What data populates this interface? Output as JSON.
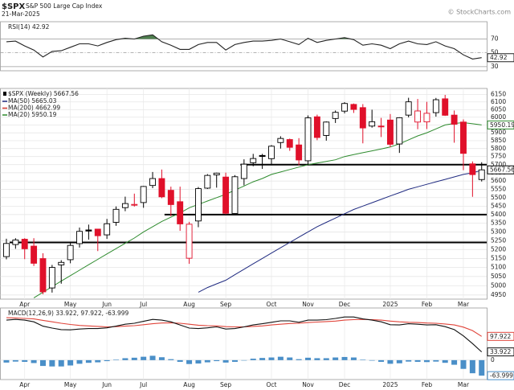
{
  "header": {
    "symbol": "$SPX",
    "name": "S&P 500 Large Cap Index",
    "date": "21-Mar-2025",
    "credit": "© StockCharts.com"
  },
  "chart_data": [
    {
      "type": "line",
      "legend": "RSI(14) 42.92",
      "ylim": [
        24,
        95
      ],
      "yticks": [
        30,
        50,
        70
      ],
      "xlim": [
        -0.7,
        52.55
      ],
      "threshold": 70,
      "threshold_color": "#4f7f4f",
      "series": [
        {
          "name": "RSI(14)",
          "color": "#222222",
          "last_label": "42.92",
          "values": [
            66,
            67,
            60,
            54,
            44,
            52,
            53,
            58,
            63,
            63,
            60,
            65,
            69,
            71,
            70,
            74,
            76,
            66,
            61,
            55,
            55,
            62,
            65,
            65,
            54,
            62,
            65,
            67,
            67,
            68,
            70,
            66,
            62,
            71,
            65,
            68,
            70,
            72,
            69,
            61,
            63,
            61,
            56,
            63,
            67,
            63,
            62,
            66,
            60,
            56,
            47,
            41,
            42.92
          ]
        }
      ]
    },
    {
      "type": "candlestick",
      "name": "$SPX (Weekly)",
      "legend": "$SPX (Weekly) 5667.56",
      "last_label": "5667.56",
      "log_scale": true,
      "ylim": [
        4928,
        6190
      ],
      "yticks": [
        4950,
        5000,
        5050,
        5100,
        5150,
        5200,
        5250,
        5300,
        5350,
        5400,
        5450,
        5500,
        5550,
        5600,
        5650,
        5700,
        5750,
        5800,
        5850,
        5900,
        5950,
        6000,
        6050,
        6100,
        6150
      ],
      "xlim": [
        -0.7,
        52.55
      ],
      "xticks": [
        {
          "value": 2,
          "label": "Apr"
        },
        {
          "value": 7,
          "label": "May"
        },
        {
          "value": 11,
          "label": "Jun"
        },
        {
          "value": 15,
          "label": "Jul"
        },
        {
          "value": 20,
          "label": "Aug"
        },
        {
          "value": 24,
          "label": "Sep"
        },
        {
          "value": 29,
          "label": "Oct"
        },
        {
          "value": 33,
          "label": "Nov"
        },
        {
          "value": 37,
          "label": "Dec"
        },
        {
          "value": 42,
          "label": "2025"
        },
        {
          "value": 46,
          "label": "Feb"
        },
        {
          "value": 50,
          "label": "Mar"
        }
      ],
      "grid": true,
      "up_color": "#000000",
      "down_color": "#e0102a",
      "open": [
        5160,
        5228,
        5258,
        5219,
        5149,
        4988,
        5114,
        5143,
        5233,
        5311,
        5316,
        5283,
        5355,
        5441,
        5460,
        5471,
        5573,
        5615,
        5544,
        5476,
        5151,
        5363,
        5557,
        5637,
        5624,
        5407,
        5615,
        5712,
        5757,
        5737,
        5838,
        5857,
        5823,
        5724,
        6003,
        5883,
        5992,
        6040,
        6084,
        6063,
        5943,
        5943,
        5982,
        5829,
        6014,
        5969,
        5970,
        6030,
        6121,
        6014,
        5969,
        5705,
        5609
      ],
      "high": [
        5261,
        5264,
        5264,
        5264,
        5179,
        5114,
        5140,
        5240,
        5325,
        5342,
        5315,
        5375,
        5448,
        5506,
        5524,
        5570,
        5655,
        5670,
        5566,
        5566,
        5358,
        5564,
        5642,
        5651,
        5651,
        5636,
        5733,
        5767,
        5767,
        5822,
        5878,
        5863,
        5866,
        6012,
        6017,
        5973,
        6044,
        6099,
        6090,
        6086,
        6049,
        5996,
        6021,
        6000,
        6128,
        6120,
        6101,
        6127,
        6147,
        6044,
        5986,
        5720,
        5715
      ],
      "low": [
        5145,
        5204,
        5146,
        5108,
        4954,
        4963,
        5011,
        5123,
        5211,
        5256,
        5191,
        5260,
        5335,
        5420,
        5447,
        5440,
        5557,
        5497,
        5391,
        5306,
        5120,
        5327,
        5552,
        5560,
        5402,
        5406,
        5574,
        5690,
        5674,
        5696,
        5800,
        5786,
        5696,
        5696,
        5853,
        5850,
        5963,
        6025,
        6028,
        5833,
        5933,
        5873,
        5809,
        5773,
        5999,
        5923,
        5924,
        6004,
        6009,
        5837,
        5666,
        5505,
        5597
      ],
      "close": [
        5234,
        5254,
        5204,
        5123,
        4967,
        5100,
        5128,
        5223,
        5303,
        5305,
        5278,
        5347,
        5431,
        5465,
        5460,
        5567,
        5615,
        5505,
        5459,
        5346,
        5344,
        5554,
        5634,
        5648,
        5408,
        5626,
        5703,
        5738,
        5751,
        5815,
        5864,
        5808,
        5729,
        5996,
        5870,
        5969,
        6032,
        6090,
        6051,
        5931,
        5971,
        5942,
        5827,
        5997,
        6101,
        6041,
        6026,
        6115,
        6013,
        5955,
        5770,
        5639,
        5668
      ],
      "series": [
        {
          "name": "MA(50)",
          "legend": "MA(50) 5665.03",
          "color": "#1f2a80",
          "last_label": "5665.03",
          "values": [
            null,
            null,
            null,
            null,
            null,
            null,
            null,
            null,
            null,
            null,
            null,
            null,
            null,
            null,
            null,
            null,
            null,
            null,
            null,
            null,
            null,
            4965,
            4990,
            5010,
            5030,
            5060,
            5090,
            5120,
            5150,
            5180,
            5210,
            5240,
            5270,
            5300,
            5330,
            5355,
            5380,
            5405,
            5430,
            5450,
            5470,
            5490,
            5510,
            5530,
            5550,
            5565,
            5580,
            5595,
            5610,
            5625,
            5640,
            5650,
            5665.03
          ]
        },
        {
          "name": "MA(200)",
          "legend": "MA(200) 4662.99",
          "color": "#d0342c",
          "last_label": "4662.99"
        },
        {
          "name": "MA(20)",
          "legend": "MA(20) 5950.19",
          "color": "#2e8b2e",
          "last_label": "5950.19",
          "box": true,
          "values": [
            null,
            null,
            null,
            4935,
            4965,
            4995,
            5025,
            5055,
            5085,
            5115,
            5145,
            5175,
            5205,
            5235,
            5265,
            5300,
            5330,
            5360,
            5385,
            5410,
            5440,
            5460,
            5480,
            5500,
            5520,
            5545,
            5570,
            5595,
            5615,
            5640,
            5655,
            5670,
            5685,
            5700,
            5710,
            5720,
            5730,
            5750,
            5762,
            5774,
            5786,
            5798,
            5810,
            5830,
            5855,
            5880,
            5900,
            5925,
            5950,
            5960,
            5965,
            5958,
            5950.19
          ]
        }
      ],
      "lines": [
        {
          "value": 5700,
          "from": 25.6
        },
        {
          "value": 5400,
          "from": 17.3
        },
        {
          "value": 5240,
          "from": 0.35
        }
      ]
    },
    {
      "type": "line",
      "legend": "MACD(12,26,9) 33.922, 97.922, -63.999",
      "ylim": [
        -80,
        215
      ],
      "yticks": [
        0
      ],
      "xlim": [
        -0.7,
        52.55
      ],
      "xticks": [
        {
          "value": 2,
          "label": "Apr"
        },
        {
          "value": 7,
          "label": "May"
        },
        {
          "value": 11,
          "label": "Jun"
        },
        {
          "value": 15,
          "label": "Jul"
        },
        {
          "value": 20,
          "label": "Aug"
        },
        {
          "value": 24,
          "label": "Sep"
        },
        {
          "value": 29,
          "label": "Oct"
        },
        {
          "value": 33,
          "label": "Nov"
        },
        {
          "value": 37,
          "label": "Dec"
        },
        {
          "value": 42,
          "label": "2025"
        },
        {
          "value": 46,
          "label": "Feb"
        },
        {
          "value": 50,
          "label": "Mar"
        }
      ],
      "series": [
        {
          "name": "Histogram",
          "style": "histogram",
          "color": "#4a8fc8",
          "last_label": "-63.999",
          "values": [
            -10,
            -6,
            -7,
            -12,
            -24,
            -26,
            -26,
            -22,
            -15,
            -11,
            -9,
            -4,
            2,
            8,
            10,
            14,
            18,
            12,
            4,
            -7,
            -16,
            -14,
            -9,
            -4,
            -10,
            -7,
            0,
            6,
            9,
            11,
            14,
            11,
            4,
            10,
            8,
            8,
            11,
            13,
            11,
            2,
            -2,
            -7,
            -15,
            -13,
            -6,
            -7,
            -8,
            -6,
            -11,
            -19,
            -36,
            -54,
            -63.999
          ]
        },
        {
          "name": "Signal",
          "style": "line",
          "color": "#e0443a",
          "last_label": "97.922",
          "values": [
            175,
            174,
            172,
            170,
            164,
            158,
            152,
            147,
            143,
            141,
            139,
            137,
            138,
            140,
            142,
            146,
            150,
            153,
            154,
            152,
            148,
            144,
            142,
            141,
            138,
            137,
            137,
            139,
            141,
            145,
            148,
            151,
            152,
            155,
            157,
            159,
            161,
            165,
            167,
            168,
            167,
            165,
            161,
            158,
            156,
            155,
            153,
            152,
            149,
            145,
            136,
            122,
            97.922
          ]
        },
        {
          "name": "MACD",
          "style": "line",
          "color": "#111111",
          "last_label": "33.922",
          "values": [
            165,
            168,
            165,
            158,
            140,
            132,
            126,
            125,
            128,
            130,
            130,
            133,
            140,
            148,
            152,
            160,
            168,
            165,
            158,
            145,
            132,
            130,
            133,
            137,
            128,
            130,
            137,
            145,
            150,
            156,
            162,
            162,
            156,
            165,
            165,
            167,
            172,
            178,
            178,
            170,
            165,
            158,
            146,
            145,
            150,
            148,
            145,
            146,
            138,
            126,
            100,
            68,
            33.922
          ]
        }
      ]
    }
  ]
}
